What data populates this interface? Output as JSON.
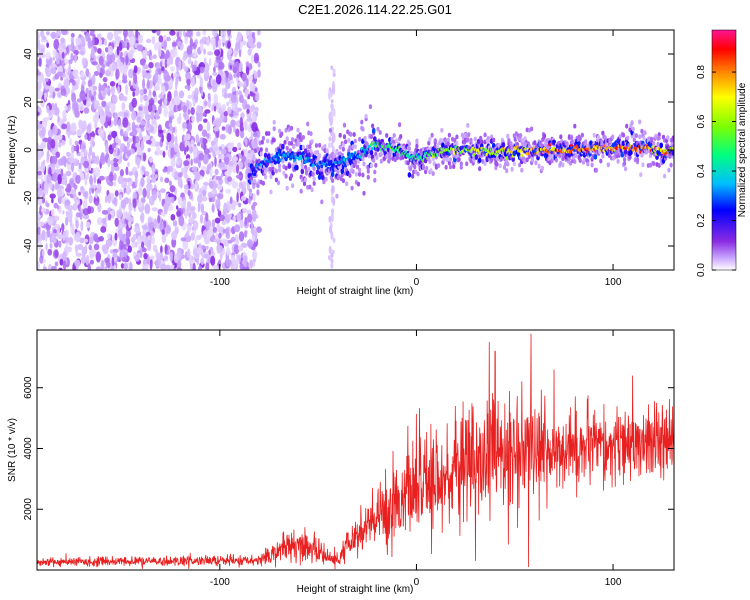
{
  "page": {
    "title": "C2E1.2026.114.22.25.G01"
  },
  "colors": {
    "background": "#ffffff",
    "axis": "#000000",
    "snr_line": "#e82020",
    "colormap": [
      "#ffffff",
      "#c9a6ff",
      "#8a2be2",
      "#0000ff",
      "#00bfff",
      "#00ff7f",
      "#7fff00",
      "#ffff00",
      "#ff8c00",
      "#ff0000",
      "#ff1493"
    ]
  },
  "chart_data": [
    {
      "type": "heatmap",
      "name": "spectrogram",
      "title": "",
      "xlabel": "Height of straight line (km)",
      "ylabel": "Frequency (Hz)",
      "xlim": [
        -193,
        131
      ],
      "ylim": [
        -50,
        50
      ],
      "xticks": [
        -100,
        0,
        100
      ],
      "xtick_labels": [
        "-100",
        "0",
        "100"
      ],
      "yticks": [
        -40,
        -20,
        0,
        20,
        40
      ],
      "ytick_labels": [
        "-40",
        "-20",
        "0",
        "20",
        "40"
      ],
      "noise_region": {
        "x_from": -193,
        "x_to": -80,
        "y_from": -50,
        "y_to": 50,
        "level": 0.15
      },
      "vertical_streak": {
        "x": -43,
        "y_from": -50,
        "y_to": 40,
        "level": 0.05
      },
      "signal_track": {
        "x": [
          -85,
          -80,
          -70,
          -60,
          -50,
          -40,
          -30,
          -22,
          -10,
          0,
          10,
          20,
          40,
          60,
          80,
          100,
          120,
          131
        ],
        "frequency": [
          -13,
          -6,
          -3,
          -3,
          -6,
          -5,
          -2,
          2,
          0,
          -4,
          -1,
          0,
          -1,
          0,
          0,
          1,
          0,
          0
        ],
        "amplitude": [
          0.35,
          0.4,
          0.42,
          0.42,
          0.38,
          0.4,
          0.45,
          0.55,
          0.6,
          0.55,
          0.62,
          0.68,
          0.75,
          0.85,
          0.9,
          0.88,
          0.85,
          0.82
        ]
      },
      "colorbar": {
        "label": "Normalized spectral amplitude",
        "range": [
          0,
          0.97
        ],
        "ticks": [
          0.0,
          0.2,
          0.4,
          0.6,
          0.8
        ],
        "tick_labels": [
          "0.0",
          "0.2",
          "0.4",
          "0.6",
          "0.8"
        ]
      }
    },
    {
      "type": "line",
      "name": "snr",
      "title": "",
      "xlabel": "Height of straight line (km)",
      "ylabel": "SNR (10 * v/v)",
      "xlim": [
        -193,
        131
      ],
      "ylim": [
        0,
        7900
      ],
      "xticks": [
        -100,
        0,
        100
      ],
      "xtick_labels": [
        "-100",
        "0",
        "100"
      ],
      "yticks": [
        2000,
        4000,
        6000
      ],
      "ytick_labels": [
        "2000",
        "4000",
        "6000"
      ],
      "series": [
        {
          "name": "SNR",
          "envelope_x": [
            -193,
            -140,
            -100,
            -82,
            -75,
            -70,
            -65,
            -60,
            -55,
            -50,
            -45,
            -40,
            -35,
            -30,
            -20,
            -10,
            0,
            10,
            20,
            30,
            40,
            50,
            60,
            70,
            80,
            90,
            100,
            110,
            120,
            131
          ],
          "envelope_mean": [
            260,
            280,
            300,
            300,
            480,
            700,
            800,
            850,
            700,
            650,
            400,
            300,
            800,
            1100,
            1700,
            2300,
            2700,
            2900,
            3300,
            3600,
            3800,
            3800,
            3900,
            4000,
            4000,
            4000,
            4000,
            4050,
            4100,
            4150
          ],
          "envelope_spread": [
            130,
            130,
            150,
            160,
            250,
            350,
            400,
            450,
            380,
            380,
            250,
            200,
            450,
            650,
            900,
            1100,
            1350,
            1400,
            1500,
            1650,
            1700,
            1600,
            1500,
            1200,
            1100,
            1050,
            1000,
            1000,
            1000,
            1000
          ],
          "peaks": [
            {
              "x": 37,
              "y": 7500
            },
            {
              "x": 40,
              "y": 7200
            },
            {
              "x": 57,
              "y": 7900
            },
            {
              "x": 70,
              "y": 6600
            },
            {
              "x": 110,
              "y": 6400
            },
            {
              "x": 57,
              "y": 100
            },
            {
              "x": 30,
              "y": 300
            }
          ]
        }
      ]
    }
  ]
}
